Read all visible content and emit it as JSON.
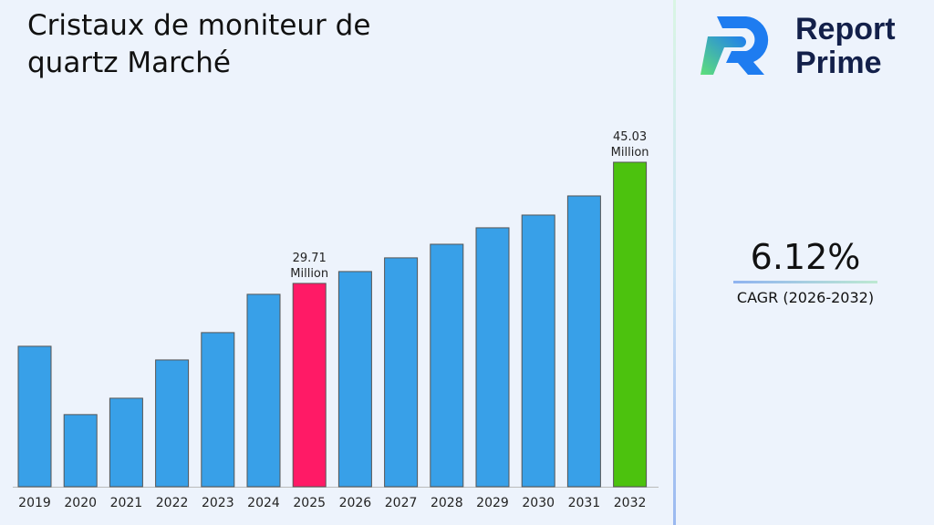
{
  "title": "Cristaux de moniteur de quartz Marché",
  "brand": {
    "line1": "Report",
    "line2": "Prime"
  },
  "cagr": {
    "value": "6.12%",
    "label": "CAGR (2026-2032)"
  },
  "colors": {
    "default_bar": "#38a0e8",
    "highlight_2025": "#ff1a66",
    "highlight_2032": "#4cc20e"
  },
  "chart_data": {
    "type": "bar",
    "title": "Cristaux de moniteur de quartz Marché",
    "categories": [
      "2019",
      "2020",
      "2021",
      "2022",
      "2023",
      "2024",
      "2025",
      "2026",
      "2027",
      "2028",
      "2029",
      "2030",
      "2031",
      "2032"
    ],
    "values": [
      21.76,
      13.12,
      15.19,
      20.03,
      23.49,
      28.33,
      29.71,
      31.21,
      32.94,
      34.66,
      36.74,
      38.35,
      40.77,
      45.03
    ],
    "unit": "Million",
    "ylim": [
      4,
      47
    ],
    "grid": false,
    "data_labels": [
      {
        "category": "2025",
        "value": "29.71",
        "unit": "Million"
      },
      {
        "category": "2032",
        "value": "45.03",
        "unit": "Million"
      }
    ]
  }
}
